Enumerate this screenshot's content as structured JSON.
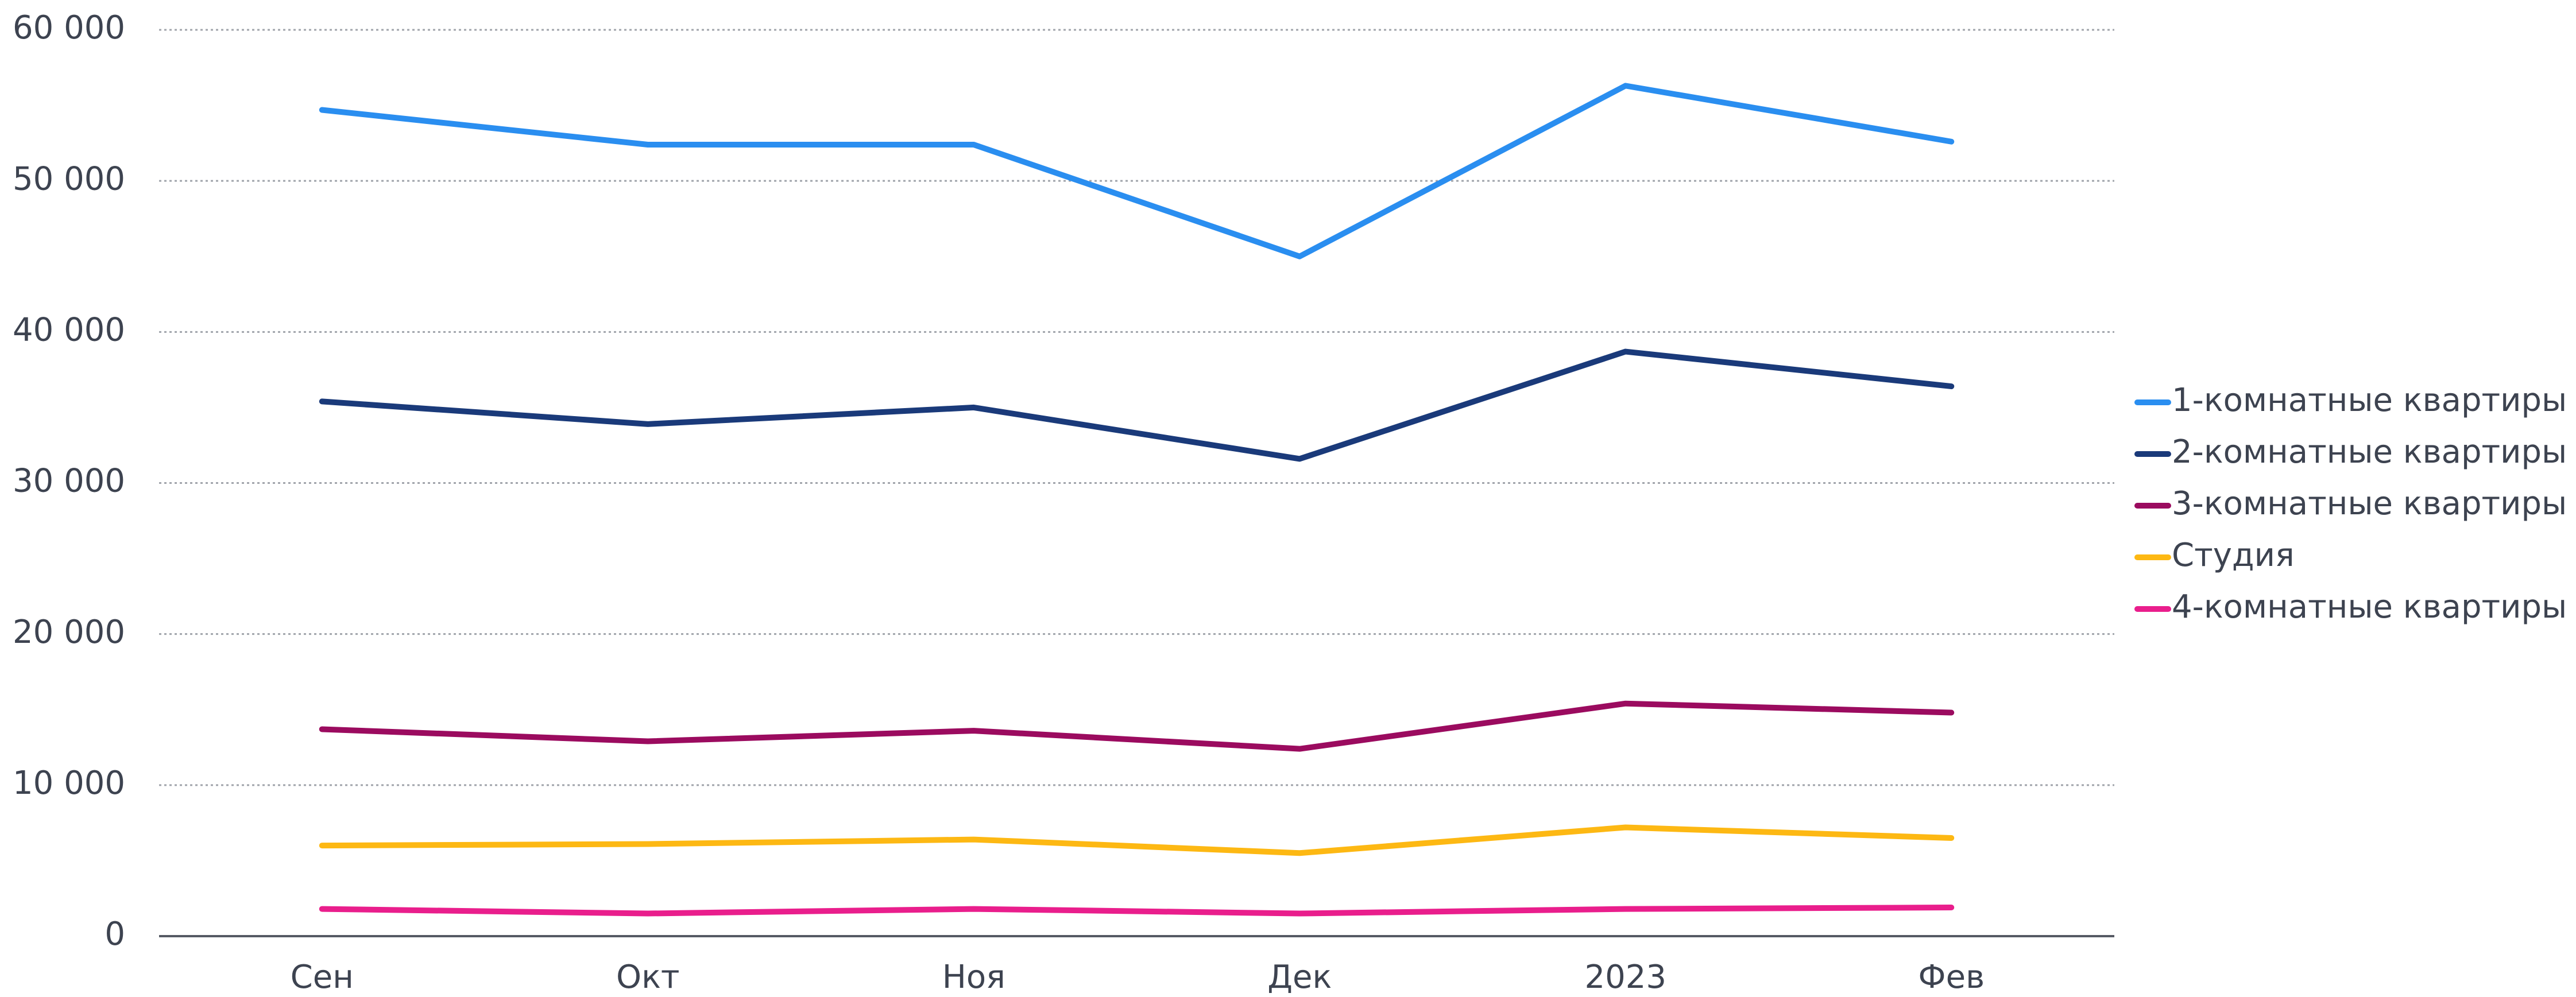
{
  "chart_data": {
    "type": "line",
    "categories": [
      "Сен",
      "Окт",
      "Ноя",
      "Дек",
      "2023",
      "Фев"
    ],
    "series": [
      {
        "name": "1-комнатные квартиры",
        "color": "#2a8ef0",
        "values": [
          54700,
          52400,
          52400,
          45000,
          56300,
          52600
        ]
      },
      {
        "name": "2-комнатные квартиры",
        "color": "#1a3a7a",
        "values": [
          35400,
          33900,
          35000,
          31600,
          38700,
          36400
        ]
      },
      {
        "name": "3-комнатные квартиры",
        "color": "#9b0b5f",
        "values": [
          13700,
          12900,
          13600,
          12400,
          15400,
          14800
        ]
      },
      {
        "name": "Студия",
        "color": "#fdb813",
        "values": [
          6000,
          6100,
          6400,
          5500,
          7200,
          6500
        ]
      },
      {
        "name": "4-комнатные квартиры",
        "color": "#e91e8c",
        "values": [
          1800,
          1500,
          1800,
          1500,
          1800,
          1900
        ]
      }
    ],
    "ylim": [
      0,
      60000
    ],
    "yticks": [
      0,
      {
        "value": 10000,
        "label": "10 000"
      },
      {
        "value": 20000,
        "label": "20 000"
      },
      {
        "value": 30000,
        "label": "30 000"
      },
      {
        "value": 40000,
        "label": "40 000"
      },
      {
        "value": 50000,
        "label": "50 000"
      },
      {
        "value": 60000,
        "label": "60 000"
      }
    ],
    "grid": true,
    "legend": "right"
  }
}
